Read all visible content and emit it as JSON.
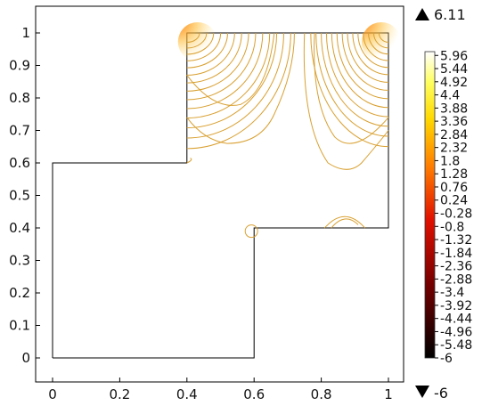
{
  "chart_data": {
    "type": "contour",
    "xlim": [
      0,
      1
    ],
    "ylim": [
      0,
      1
    ],
    "x_ticks": [
      "0",
      "0.2",
      "0.4",
      "0.6",
      "0.8",
      "1"
    ],
    "y_ticks": [
      "0",
      "0.1",
      "0.2",
      "0.3",
      "0.4",
      "0.5",
      "0.6",
      "0.7",
      "0.8",
      "0.9",
      "1"
    ],
    "domain_outline": [
      [
        0,
        0
      ],
      [
        0.6,
        0
      ],
      [
        0.6,
        0.4
      ],
      [
        1,
        0.4
      ],
      [
        1,
        1
      ],
      [
        0.4,
        1
      ],
      [
        0.4,
        0.6
      ],
      [
        0,
        0.6
      ],
      [
        0,
        0
      ]
    ],
    "hole": {
      "center": [
        0.6,
        0.39
      ],
      "radius": 0.02
    },
    "colorbar": {
      "max_marker": "6.11",
      "min_marker": "-6",
      "max_value": 6.11,
      "min_value": -6,
      "ticks": [
        "5.96",
        "5.44",
        "4.92",
        "4.4",
        "3.88",
        "3.36",
        "2.84",
        "2.32",
        "1.8",
        "1.28",
        "0.76",
        "0.24",
        "-0.28",
        "-0.8",
        "-1.32",
        "-1.84",
        "-2.36",
        "-2.88",
        "-3.4",
        "-3.92",
        "-4.44",
        "-4.96",
        "-5.48",
        "-6"
      ],
      "colormap": "heat"
    },
    "hot_spots": [
      [
        0.4,
        1.0
      ],
      [
        1.0,
        1.0
      ]
    ],
    "contour_color": "#d9a030"
  }
}
